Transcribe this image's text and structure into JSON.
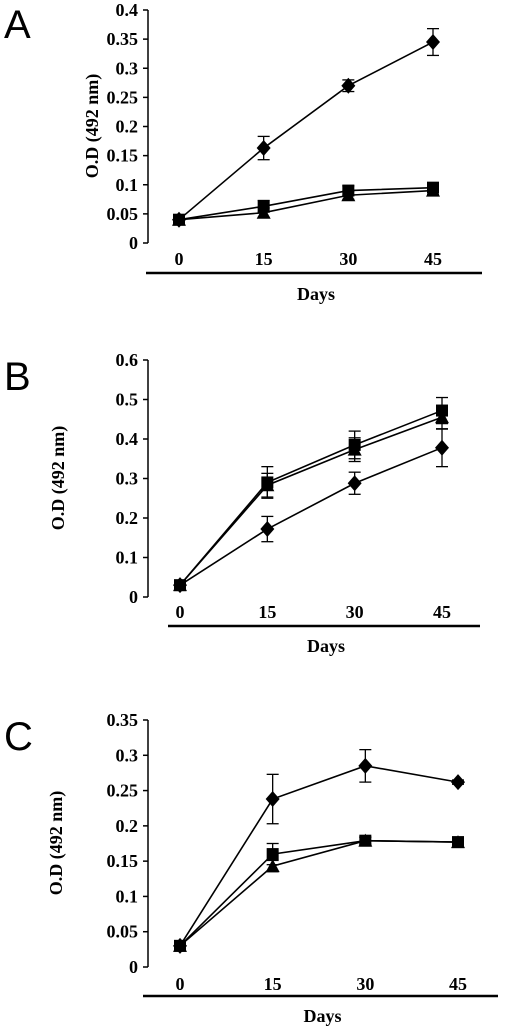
{
  "chart_data": [
    {
      "type": "line",
      "panel": "A",
      "xlabel": "Days",
      "ylabel": "O.D (492 nm)",
      "categories": [
        "0",
        "15",
        "30",
        "45"
      ],
      "ylim": [
        0,
        0.4
      ],
      "yticks": [
        "0",
        "0.05",
        "0.1",
        "0.15",
        "0.2",
        "0.25",
        "0.3",
        "0.35",
        "0.4"
      ],
      "series": [
        {
          "marker": "diamond",
          "values": [
            0.04,
            0.163,
            0.27,
            0.345
          ],
          "errors": [
            0.005,
            0.02,
            0.01,
            0.023
          ]
        },
        {
          "marker": "square",
          "values": [
            0.04,
            0.063,
            0.09,
            0.095
          ],
          "errors": [
            0.005,
            0.01,
            0.008,
            0.008
          ]
        },
        {
          "marker": "triangle",
          "values": [
            0.04,
            0.052,
            0.082,
            0.09
          ],
          "errors": [
            0.005,
            0.008,
            0.007,
            0.007
          ]
        }
      ]
    },
    {
      "type": "line",
      "panel": "B",
      "xlabel": "Days",
      "ylabel": "O.D (492 nm)",
      "categories": [
        "0",
        "15",
        "30",
        "45"
      ],
      "ylim": [
        0,
        0.6
      ],
      "yticks": [
        "0",
        "0.1",
        "0.2",
        "0.3",
        "0.4",
        "0.5",
        "0.6"
      ],
      "series": [
        {
          "marker": "diamond",
          "values": [
            0.03,
            0.172,
            0.288,
            0.378
          ],
          "errors": [
            0.008,
            0.032,
            0.028,
            0.048
          ]
        },
        {
          "marker": "square",
          "values": [
            0.03,
            0.29,
            0.385,
            0.472
          ],
          "errors": [
            0.008,
            0.04,
            0.035,
            0.033
          ]
        },
        {
          "marker": "triangle",
          "values": [
            0.03,
            0.283,
            0.373,
            0.455
          ],
          "errors": [
            0.008,
            0.03,
            0.03,
            0.03
          ]
        }
      ]
    },
    {
      "type": "line",
      "panel": "C",
      "xlabel": "Days",
      "ylabel": "O.D (492 nm)",
      "categories": [
        "0",
        "15",
        "30",
        "45"
      ],
      "ylim": [
        0,
        0.35
      ],
      "yticks": [
        "0",
        "0.05",
        "0.1",
        "0.15",
        "0.2",
        "0.25",
        "0.3",
        "0.35"
      ],
      "series": [
        {
          "marker": "diamond",
          "values": [
            0.03,
            0.238,
            0.285,
            0.262
          ],
          "errors": [
            0.005,
            0.035,
            0.023,
            0.003
          ]
        },
        {
          "marker": "square",
          "values": [
            0.03,
            0.16,
            0.179,
            0.177
          ],
          "errors": [
            0.005,
            0.015,
            0.005,
            0.005
          ]
        },
        {
          "marker": "triangle",
          "values": [
            0.03,
            0.143,
            0.179,
            0.177
          ],
          "errors": [
            0.005,
            0.008,
            0.005,
            0.005
          ]
        }
      ]
    }
  ]
}
